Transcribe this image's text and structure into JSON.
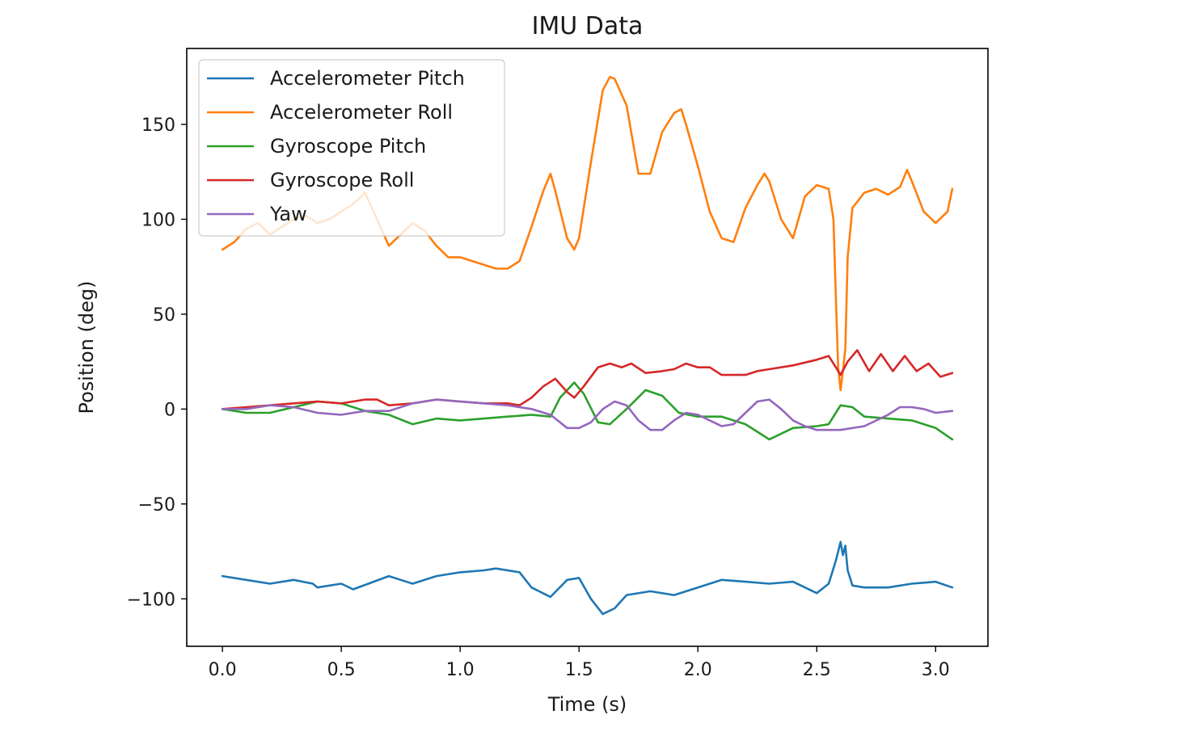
{
  "chart_data": {
    "type": "line",
    "title": "IMU Data",
    "xlabel": "Time (s)",
    "ylabel": "Position (deg)",
    "xlim": [
      -0.15,
      3.22
    ],
    "ylim": [
      -125,
      190
    ],
    "xticks": [
      0.0,
      0.5,
      1.0,
      1.5,
      2.0,
      2.5,
      3.0
    ],
    "xtick_labels": [
      "0.0",
      "0.5",
      "1.0",
      "1.5",
      "2.0",
      "2.5",
      "3.0"
    ],
    "yticks": [
      -100,
      -50,
      0,
      50,
      100,
      150
    ],
    "ytick_labels": [
      "−100",
      "−50",
      "0",
      "50",
      "100",
      "150"
    ],
    "grid": false,
    "legend_position": "upper-left",
    "series": [
      {
        "name": "Accelerometer Pitch",
        "color": "#1f77b4",
        "x": [
          0.0,
          0.1,
          0.2,
          0.3,
          0.38,
          0.4,
          0.5,
          0.55,
          0.7,
          0.8,
          0.9,
          1.0,
          1.1,
          1.15,
          1.25,
          1.3,
          1.38,
          1.45,
          1.5,
          1.55,
          1.6,
          1.65,
          1.7,
          1.8,
          1.9,
          2.0,
          2.1,
          2.2,
          2.3,
          2.4,
          2.5,
          2.55,
          2.58,
          2.6,
          2.61,
          2.62,
          2.63,
          2.65,
          2.7,
          2.8,
          2.9,
          3.0,
          3.07
        ],
        "y": [
          -88,
          -90,
          -92,
          -90,
          -92,
          -94,
          -92,
          -95,
          -88,
          -92,
          -88,
          -86,
          -85,
          -84,
          -86,
          -94,
          -99,
          -90,
          -89,
          -100,
          -108,
          -105,
          -98,
          -96,
          -98,
          -94,
          -90,
          -91,
          -92,
          -91,
          -97,
          -92,
          -80,
          -70,
          -77,
          -72,
          -85,
          -93,
          -94,
          -94,
          -92,
          -91,
          -94
        ]
      },
      {
        "name": "Accelerometer Roll",
        "color": "#ff7f0e",
        "x": [
          0.0,
          0.05,
          0.1,
          0.15,
          0.2,
          0.25,
          0.3,
          0.35,
          0.4,
          0.45,
          0.5,
          0.55,
          0.6,
          0.65,
          0.7,
          0.75,
          0.8,
          0.85,
          0.9,
          0.95,
          1.0,
          1.05,
          1.1,
          1.15,
          1.2,
          1.25,
          1.3,
          1.35,
          1.38,
          1.4,
          1.45,
          1.48,
          1.5,
          1.55,
          1.6,
          1.63,
          1.65,
          1.7,
          1.75,
          1.8,
          1.85,
          1.9,
          1.93,
          1.95,
          2.0,
          2.05,
          2.1,
          2.15,
          2.2,
          2.25,
          2.28,
          2.3,
          2.35,
          2.4,
          2.45,
          2.5,
          2.55,
          2.57,
          2.58,
          2.59,
          2.6,
          2.61,
          2.62,
          2.63,
          2.65,
          2.7,
          2.75,
          2.8,
          2.85,
          2.88,
          2.9,
          2.95,
          3.0,
          3.05,
          3.07
        ],
        "y": [
          84,
          88,
          95,
          98,
          92,
          96,
          100,
          102,
          98,
          100,
          104,
          108,
          114,
          100,
          86,
          92,
          98,
          94,
          86,
          80,
          80,
          78,
          76,
          74,
          74,
          78,
          96,
          115,
          124,
          115,
          90,
          84,
          90,
          130,
          168,
          175,
          174,
          160,
          124,
          124,
          146,
          156,
          158,
          150,
          128,
          104,
          90,
          88,
          106,
          118,
          124,
          120,
          100,
          90,
          112,
          118,
          116,
          100,
          60,
          22,
          10,
          20,
          32,
          80,
          106,
          114,
          116,
          113,
          117,
          126,
          120,
          104,
          98,
          104,
          116
        ]
      },
      {
        "name": "Gyroscope Pitch",
        "color": "#2ca02c",
        "x": [
          0.0,
          0.1,
          0.2,
          0.3,
          0.4,
          0.5,
          0.6,
          0.7,
          0.8,
          0.9,
          1.0,
          1.1,
          1.2,
          1.3,
          1.38,
          1.42,
          1.48,
          1.52,
          1.58,
          1.63,
          1.7,
          1.78,
          1.85,
          1.92,
          2.0,
          2.1,
          2.2,
          2.3,
          2.4,
          2.5,
          2.55,
          2.6,
          2.65,
          2.7,
          2.8,
          2.9,
          3.0,
          3.07
        ],
        "y": [
          0,
          -2,
          -2,
          1,
          4,
          3,
          -1,
          -3,
          -8,
          -5,
          -6,
          -5,
          -4,
          -3,
          -4,
          6,
          14,
          8,
          -7,
          -8,
          0,
          10,
          7,
          -2,
          -4,
          -4,
          -8,
          -16,
          -10,
          -9,
          -8,
          2,
          1,
          -4,
          -5,
          -6,
          -10,
          -16
        ]
      },
      {
        "name": "Gyroscope Roll",
        "color": "#d62728",
        "x": [
          0.0,
          0.1,
          0.2,
          0.3,
          0.4,
          0.5,
          0.6,
          0.65,
          0.7,
          0.8,
          0.9,
          1.0,
          1.1,
          1.2,
          1.25,
          1.3,
          1.35,
          1.4,
          1.45,
          1.48,
          1.52,
          1.58,
          1.63,
          1.68,
          1.72,
          1.78,
          1.85,
          1.9,
          1.95,
          2.0,
          2.05,
          2.1,
          2.15,
          2.2,
          2.25,
          2.3,
          2.4,
          2.5,
          2.55,
          2.6,
          2.63,
          2.67,
          2.72,
          2.77,
          2.82,
          2.87,
          2.92,
          2.97,
          3.02,
          3.07
        ],
        "y": [
          0,
          1,
          2,
          3,
          4,
          3,
          5,
          5,
          2,
          3,
          5,
          4,
          3,
          3,
          2,
          6,
          12,
          16,
          9,
          6,
          12,
          22,
          24,
          22,
          24,
          19,
          20,
          21,
          24,
          22,
          22,
          18,
          18,
          18,
          20,
          21,
          23,
          26,
          28,
          18,
          25,
          31,
          20,
          29,
          20,
          28,
          20,
          24,
          17,
          19
        ]
      },
      {
        "name": "Yaw",
        "color": "#9467bd",
        "x": [
          0.0,
          0.1,
          0.2,
          0.3,
          0.4,
          0.5,
          0.6,
          0.7,
          0.8,
          0.9,
          1.0,
          1.1,
          1.2,
          1.3,
          1.38,
          1.45,
          1.5,
          1.55,
          1.6,
          1.65,
          1.7,
          1.75,
          1.8,
          1.85,
          1.9,
          1.95,
          2.0,
          2.05,
          2.1,
          2.15,
          2.2,
          2.25,
          2.3,
          2.35,
          2.4,
          2.45,
          2.5,
          2.6,
          2.7,
          2.8,
          2.85,
          2.9,
          2.95,
          3.0,
          3.07
        ],
        "y": [
          0,
          0,
          2,
          1,
          -2,
          -3,
          -1,
          -1,
          3,
          5,
          4,
          3,
          2,
          0,
          -3,
          -10,
          -10,
          -7,
          0,
          4,
          2,
          -6,
          -11,
          -11,
          -6,
          -2,
          -3,
          -6,
          -9,
          -8,
          -2,
          4,
          5,
          0,
          -6,
          -9,
          -11,
          -11,
          -9,
          -3,
          1,
          1,
          0,
          -2,
          -1
        ]
      }
    ]
  }
}
